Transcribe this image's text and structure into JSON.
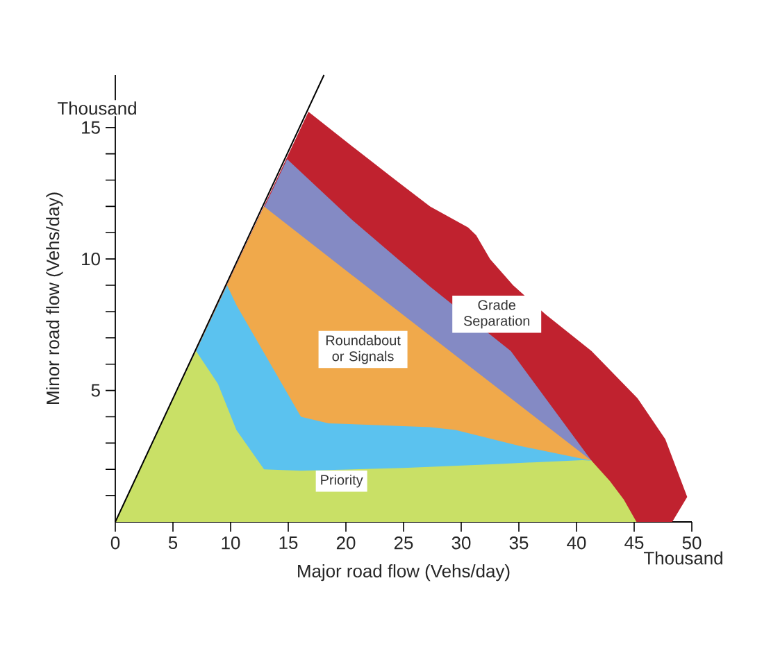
{
  "chart_data": {
    "type": "area",
    "xlabel": "Major road flow (Vehs/day)",
    "ylabel": "Minor road flow (Vehs/day)",
    "xlim": [
      0,
      50
    ],
    "ylim": [
      0,
      17
    ],
    "xticks": [
      0,
      5,
      10,
      15,
      20,
      25,
      30,
      35,
      40,
      45,
      50
    ],
    "yticks": [
      {
        "value": 1,
        "label": null
      },
      {
        "value": 2,
        "label": null
      },
      {
        "value": 3,
        "label": null
      },
      {
        "value": 4,
        "label": null
      },
      5,
      {
        "value": 6,
        "label": null
      },
      {
        "value": 7,
        "label": null
      },
      {
        "value": 8,
        "label": null
      },
      {
        "value": 9,
        "label": null
      },
      10,
      {
        "value": 11,
        "label": null
      },
      {
        "value": 12,
        "label": null
      },
      {
        "value": 13,
        "label": null
      },
      {
        "value": 14,
        "label": null
      },
      15
    ],
    "series": [
      {
        "name": "Grade Separation",
        "color": "#c0222f",
        "x": [
          0,
          16.75,
          20.5,
          24.9,
          27.3,
          30.6,
          31.3,
          32.5,
          34.5,
          37.3,
          41.3,
          45.3,
          47.7,
          49.6,
          48.3
        ],
        "values": [
          0,
          15.6,
          14.3,
          12.8,
          12.0,
          11.2,
          10.9,
          10.0,
          9.0,
          7.9,
          6.5,
          4.7,
          3.15,
          0.95,
          0
        ]
      },
      {
        "color": "#848ac4",
        "x": [
          0,
          14.9,
          20.5,
          25.3,
          27.3,
          34.3,
          41.3
        ],
        "values": [
          0,
          13.8,
          11.5,
          9.7,
          8.95,
          6.5,
          2.33
        ]
      },
      {
        "name": "Roundabout or Signals",
        "color": "#f0a94b",
        "x": [
          0,
          12.9,
          23.7,
          41.3
        ],
        "values": [
          0,
          12.0,
          8.3,
          2.33
        ]
      },
      {
        "color": "#5bc2ef",
        "x": [
          0,
          9.7,
          10.5,
          16.1,
          18.5,
          27.3,
          29.5,
          35,
          41.3
        ],
        "values": [
          0,
          9.0,
          8.25,
          4.0,
          3.75,
          3.6,
          3.5,
          2.9,
          2.33
        ]
      },
      {
        "name": "Priority",
        "color": "#c9e066",
        "x": [
          0,
          7.0,
          8.9,
          10.5,
          12.9,
          16.1,
          25,
          33,
          40.5,
          41.3,
          42.9,
          44.1,
          45.2
        ],
        "values": [
          0,
          6.5,
          5.25,
          3.5,
          2.0,
          1.95,
          2.05,
          2.2,
          2.35,
          2.33,
          1.55,
          0.85,
          0
        ]
      },
      {
        "type": "line",
        "color": "#000000",
        "x": [
          0,
          18.1
        ],
        "values": [
          0,
          17.0
        ]
      }
    ],
    "annotations": [
      "Thousand",
      "Thousand"
    ]
  }
}
